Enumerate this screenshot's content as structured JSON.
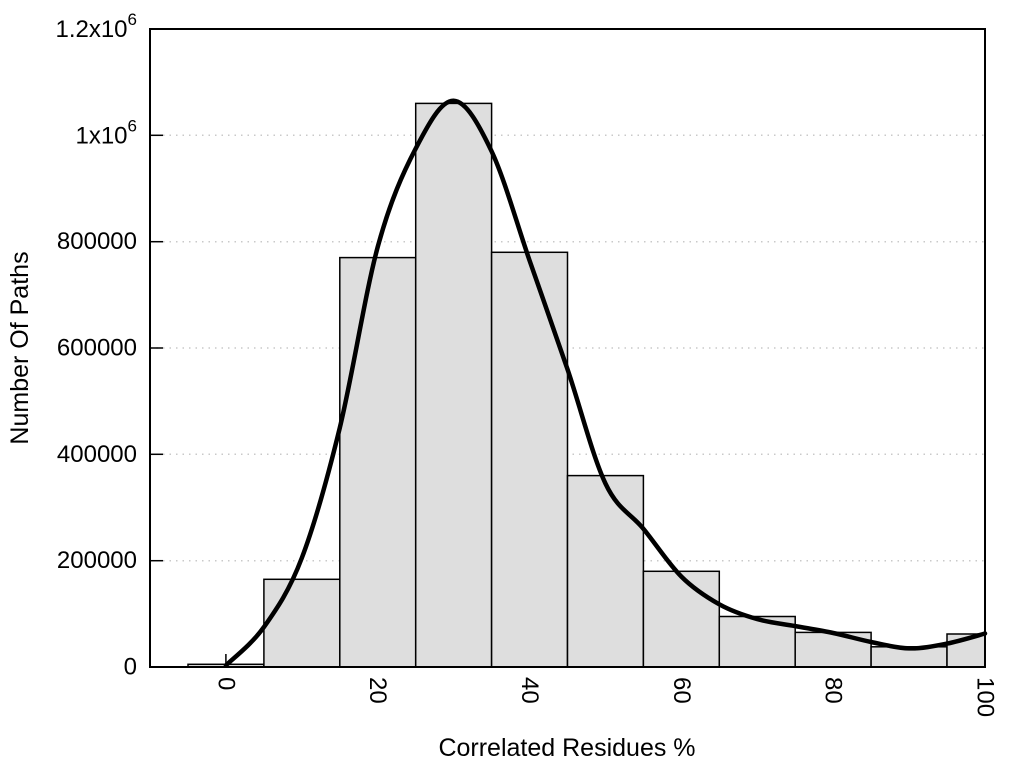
{
  "chart_data": {
    "type": "bar",
    "xlabel": "Correlated Residues %",
    "ylabel": "Number Of Paths",
    "xlim": [
      -10,
      100
    ],
    "ylim": [
      0,
      1200000
    ],
    "xticks": [
      0,
      20,
      40,
      60,
      80,
      100
    ],
    "xtick_labels": [
      "0",
      "20",
      "40",
      "60",
      "80",
      "100"
    ],
    "xtick_rotation_deg": 90,
    "yticks": [
      0,
      200000,
      400000,
      600000,
      800000,
      1000000,
      1200000
    ],
    "ytick_labels": [
      "0",
      "200000",
      "400000",
      "600000",
      "800000",
      "1x10^6",
      "1.2x10^6"
    ],
    "grid": {
      "y_gridlines": true,
      "style": "dotted",
      "color": "#c9c9c9"
    },
    "frame_color": "#000000",
    "background_color": "#ffffff",
    "histogram": {
      "bin_width": 10,
      "bin_centers": [
        0,
        10,
        20,
        30,
        40,
        50,
        60,
        70,
        80,
        90,
        100
      ],
      "values": [
        5000,
        165000,
        770000,
        1060000,
        780000,
        360000,
        180000,
        95000,
        65000,
        38000,
        62000
      ],
      "clip_max_x": 100,
      "fill_color": "#dedede",
      "edge_color": "#000000"
    },
    "smooth_curve": {
      "color": "#000000",
      "stroke_width": 4.5,
      "x": [
        0,
        5,
        10,
        15,
        20,
        25,
        30,
        35,
        40,
        45,
        50,
        55,
        60,
        65,
        70,
        75,
        80,
        85,
        90,
        95,
        100
      ],
      "y": [
        3000,
        75000,
        205000,
        450000,
        790000,
        975000,
        1065000,
        970000,
        765000,
        560000,
        345000,
        260000,
        170000,
        118000,
        90000,
        77000,
        64000,
        47000,
        35000,
        44000,
        63000
      ]
    }
  }
}
